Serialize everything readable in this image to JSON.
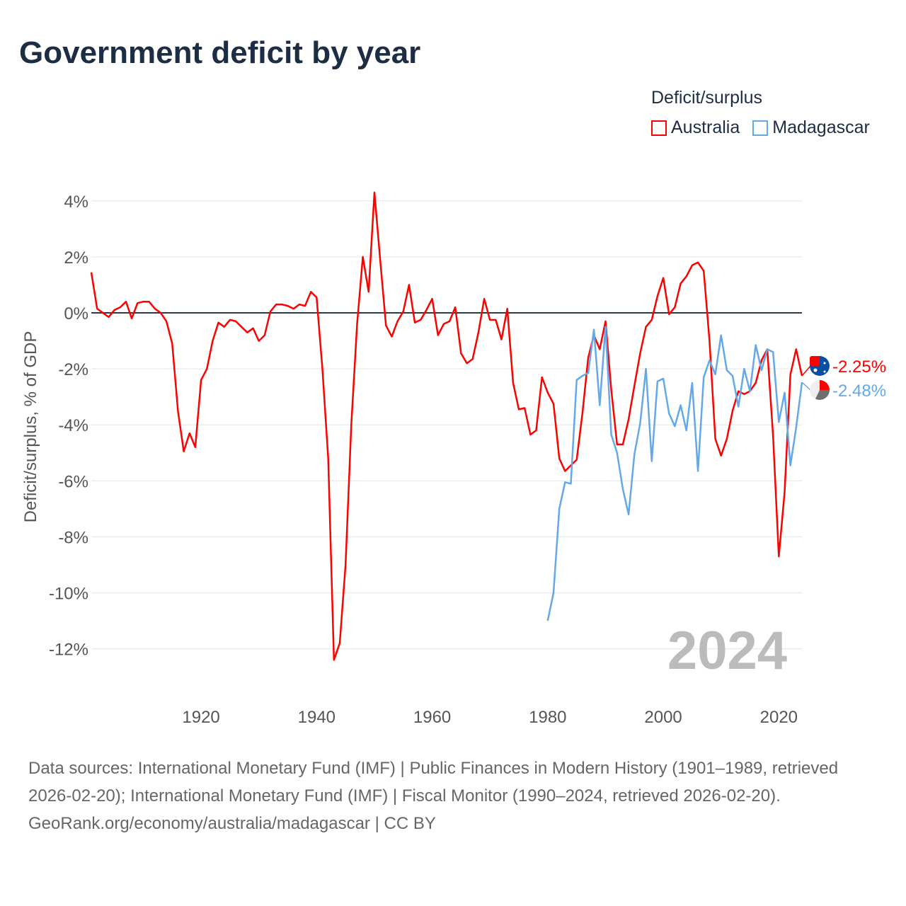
{
  "title": "Government deficit by year",
  "legend": {
    "title": "Deficit/surplus"
  },
  "colors": {
    "australia": "#ff0000",
    "madagascar": "#64a8ea",
    "zero_line": "#2c3a4a",
    "grid": "#ececec",
    "year_label": "#bbbbbb"
  },
  "chart_data": {
    "type": "line",
    "title": "Government deficit by year",
    "ylabel": "Deficit/surplus, % of GDP",
    "xlabel": "",
    "xlim": [
      1901,
      2024
    ],
    "ylim": [
      -13,
      4.5
    ],
    "x_ticks": [
      "1920",
      "1940",
      "1960",
      "1980",
      "2000",
      "2020"
    ],
    "y_ticks": [
      "4%",
      "2%",
      "0%",
      "-2%",
      "-4%",
      "-6%",
      "-8%",
      "-10%",
      "-12%"
    ],
    "grid": true,
    "legend_position": "top-right",
    "year_label": "2024",
    "series": [
      {
        "name": "Australia",
        "start_year": 1901,
        "end_label": "-2.25%",
        "values": [
          1.45,
          0.15,
          0.0,
          -0.15,
          0.1,
          0.2,
          0.4,
          -0.2,
          0.35,
          0.4,
          0.4,
          0.15,
          0.0,
          -0.3,
          -1.1,
          -3.5,
          -4.95,
          -4.3,
          -4.8,
          -2.4,
          -2.0,
          -1.0,
          -0.35,
          -0.5,
          -0.25,
          -0.3,
          -0.5,
          -0.7,
          -0.55,
          -1.0,
          -0.8,
          0.05,
          0.3,
          0.3,
          0.25,
          0.15,
          0.3,
          0.25,
          0.75,
          0.55,
          -2.0,
          -5.2,
          -12.4,
          -11.8,
          -9.0,
          -4.0,
          -0.4,
          2.0,
          0.75,
          4.3,
          1.9,
          -0.45,
          -0.85,
          -0.3,
          0.05,
          1.0,
          -0.35,
          -0.25,
          0.1,
          0.5,
          -0.8,
          -0.4,
          -0.3,
          0.2,
          -1.45,
          -1.8,
          -1.65,
          -0.7,
          0.5,
          -0.25,
          -0.25,
          -0.95,
          0.15,
          -2.5,
          -3.45,
          -3.4,
          -4.35,
          -4.2,
          -2.3,
          -2.85,
          -3.25,
          -5.2,
          -5.65,
          -5.45,
          -5.25,
          -3.6,
          -1.6,
          -0.8,
          -1.3,
          -0.3,
          -2.75,
          -4.7,
          -4.7,
          -3.8,
          -2.6,
          -1.45,
          -0.5,
          -0.25,
          0.6,
          1.25,
          -0.05,
          0.2,
          1.05,
          1.3,
          1.7,
          1.8,
          1.5,
          -1.0,
          -4.5,
          -5.1,
          -4.5,
          -3.5,
          -2.8,
          -2.9,
          -2.8,
          -2.5,
          -1.7,
          -1.3,
          -4.4,
          -8.7,
          -6.4,
          -2.2,
          -1.3,
          -2.25
        ]
      },
      {
        "name": "Madagascar",
        "start_year": 1980,
        "end_label": "-2.48%",
        "values": [
          -11.0,
          -10.0,
          -7.0,
          -6.05,
          -6.1,
          -2.4,
          -2.25,
          -2.15,
          -0.6,
          -3.3,
          -0.5,
          -4.35,
          -5.0,
          -6.3,
          -7.2,
          -5.05,
          -3.95,
          -2.0,
          -5.3,
          -2.45,
          -2.35,
          -3.6,
          -4.05,
          -3.3,
          -4.2,
          -2.5,
          -5.65,
          -2.3,
          -1.7,
          -2.2,
          -0.8,
          -2.05,
          -2.25,
          -3.35,
          -2.0,
          -2.8,
          -1.15,
          -2.05,
          -1.3,
          -1.4,
          -3.9,
          -2.85,
          -5.45,
          -4.1,
          -2.48
        ]
      }
    ]
  },
  "footer": {
    "sources": "Data sources: International Monetary Fund (IMF) | Public Finances in Modern History (1901–1989, retrieved 2026-02-20); International Monetary Fund (IMF) | Fiscal Monitor (1990–2024, retrieved 2026-02-20).",
    "credit": "GeoRank.org/economy/australia/madagascar | CC BY"
  }
}
